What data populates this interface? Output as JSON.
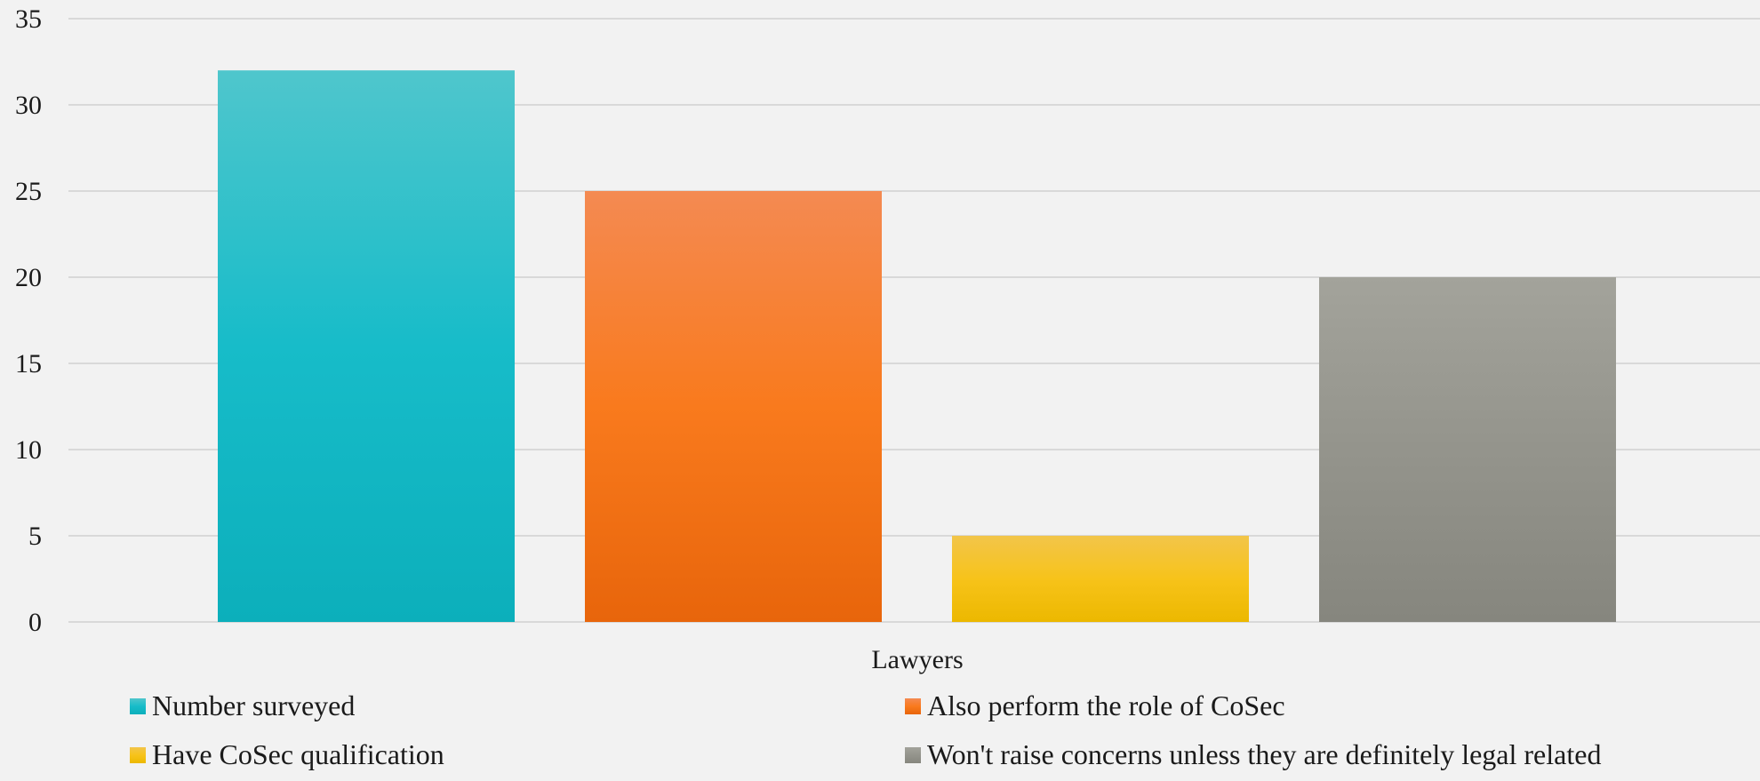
{
  "chart_data": {
    "type": "bar",
    "categories": [
      "Lawyers"
    ],
    "series": [
      {
        "name": "Number surveyed",
        "values": [
          32
        ],
        "color": "#17bcc9",
        "color_top": "#4fc6cc",
        "color_bottom": "#0cafbb"
      },
      {
        "name": "Also perform the role of CoSec",
        "values": [
          25
        ],
        "color": "#f97a1d",
        "color_top": "#f48a52",
        "color_bottom": "#e8650b"
      },
      {
        "name": "Have CoSec qualification",
        "values": [
          5
        ],
        "color": "#f7c31a",
        "color_top": "#f2c54a",
        "color_bottom": "#ecb800"
      },
      {
        "name": "Won't raise concerns unless they are definitely legal related",
        "values": [
          20
        ],
        "color": "#94948c",
        "color_top": "#a3a39b",
        "color_bottom": "#86867e"
      }
    ],
    "yticks": [
      0,
      5,
      10,
      15,
      20,
      25,
      30,
      35
    ],
    "ylim": [
      0,
      35
    ],
    "grid": true,
    "legend_position": "bottom"
  }
}
